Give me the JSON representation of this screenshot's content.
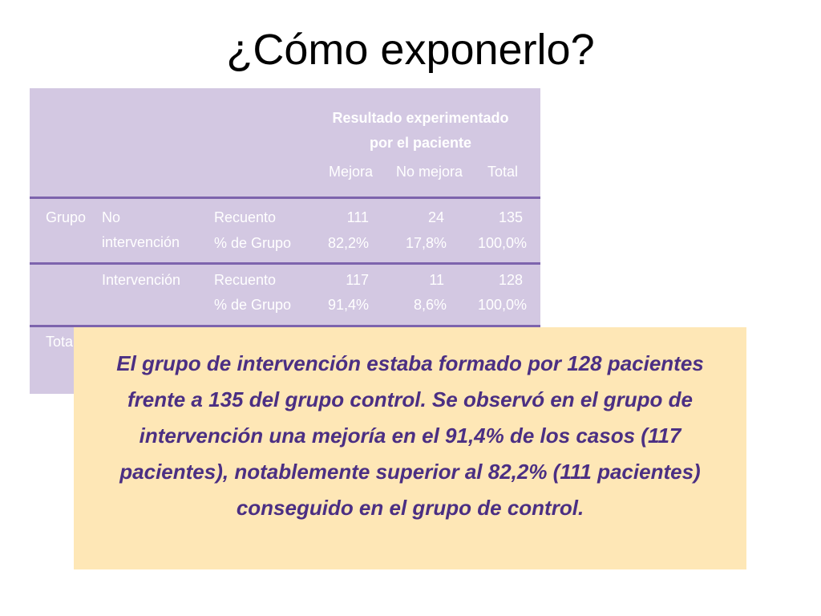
{
  "title": "¿Cómo exponerlo?",
  "table": {
    "header_group": "Resultado experimentado por el paciente",
    "columns": [
      "Mejora",
      "No mejora",
      "Total"
    ],
    "row_group_label": "Grupo",
    "groups": [
      {
        "name_line1": "No",
        "name_line2": "intervención",
        "count_label": "Recuento",
        "pct_label": "% de Grupo",
        "count": [
          "111",
          "24",
          "135"
        ],
        "pct": [
          "82,2%",
          "17,8%",
          "100,0%"
        ]
      },
      {
        "name_line1": "Intervención",
        "count_label": "Recuento",
        "pct_label": "% de Grupo",
        "count": [
          "117",
          "11",
          "128"
        ],
        "pct": [
          "91,4%",
          "8,6%",
          "100,0%"
        ]
      }
    ],
    "total_label_visible": "Tota"
  },
  "note": {
    "text": "El grupo de intervención estaba formado por 128 pacientes frente a 135 del grupo control. Se observó en el grupo de intervención una mejoría en el 91,4% de los casos (117 pacientes), notablemente superior al 82,2% (111 pacientes) conseguido en el grupo de control."
  },
  "colors": {
    "table_background": "#d3c8e2",
    "table_rules": "#7d64ad",
    "table_text": "#ffffff",
    "note_background": "#fee7b6",
    "note_text": "#4b2f83"
  }
}
